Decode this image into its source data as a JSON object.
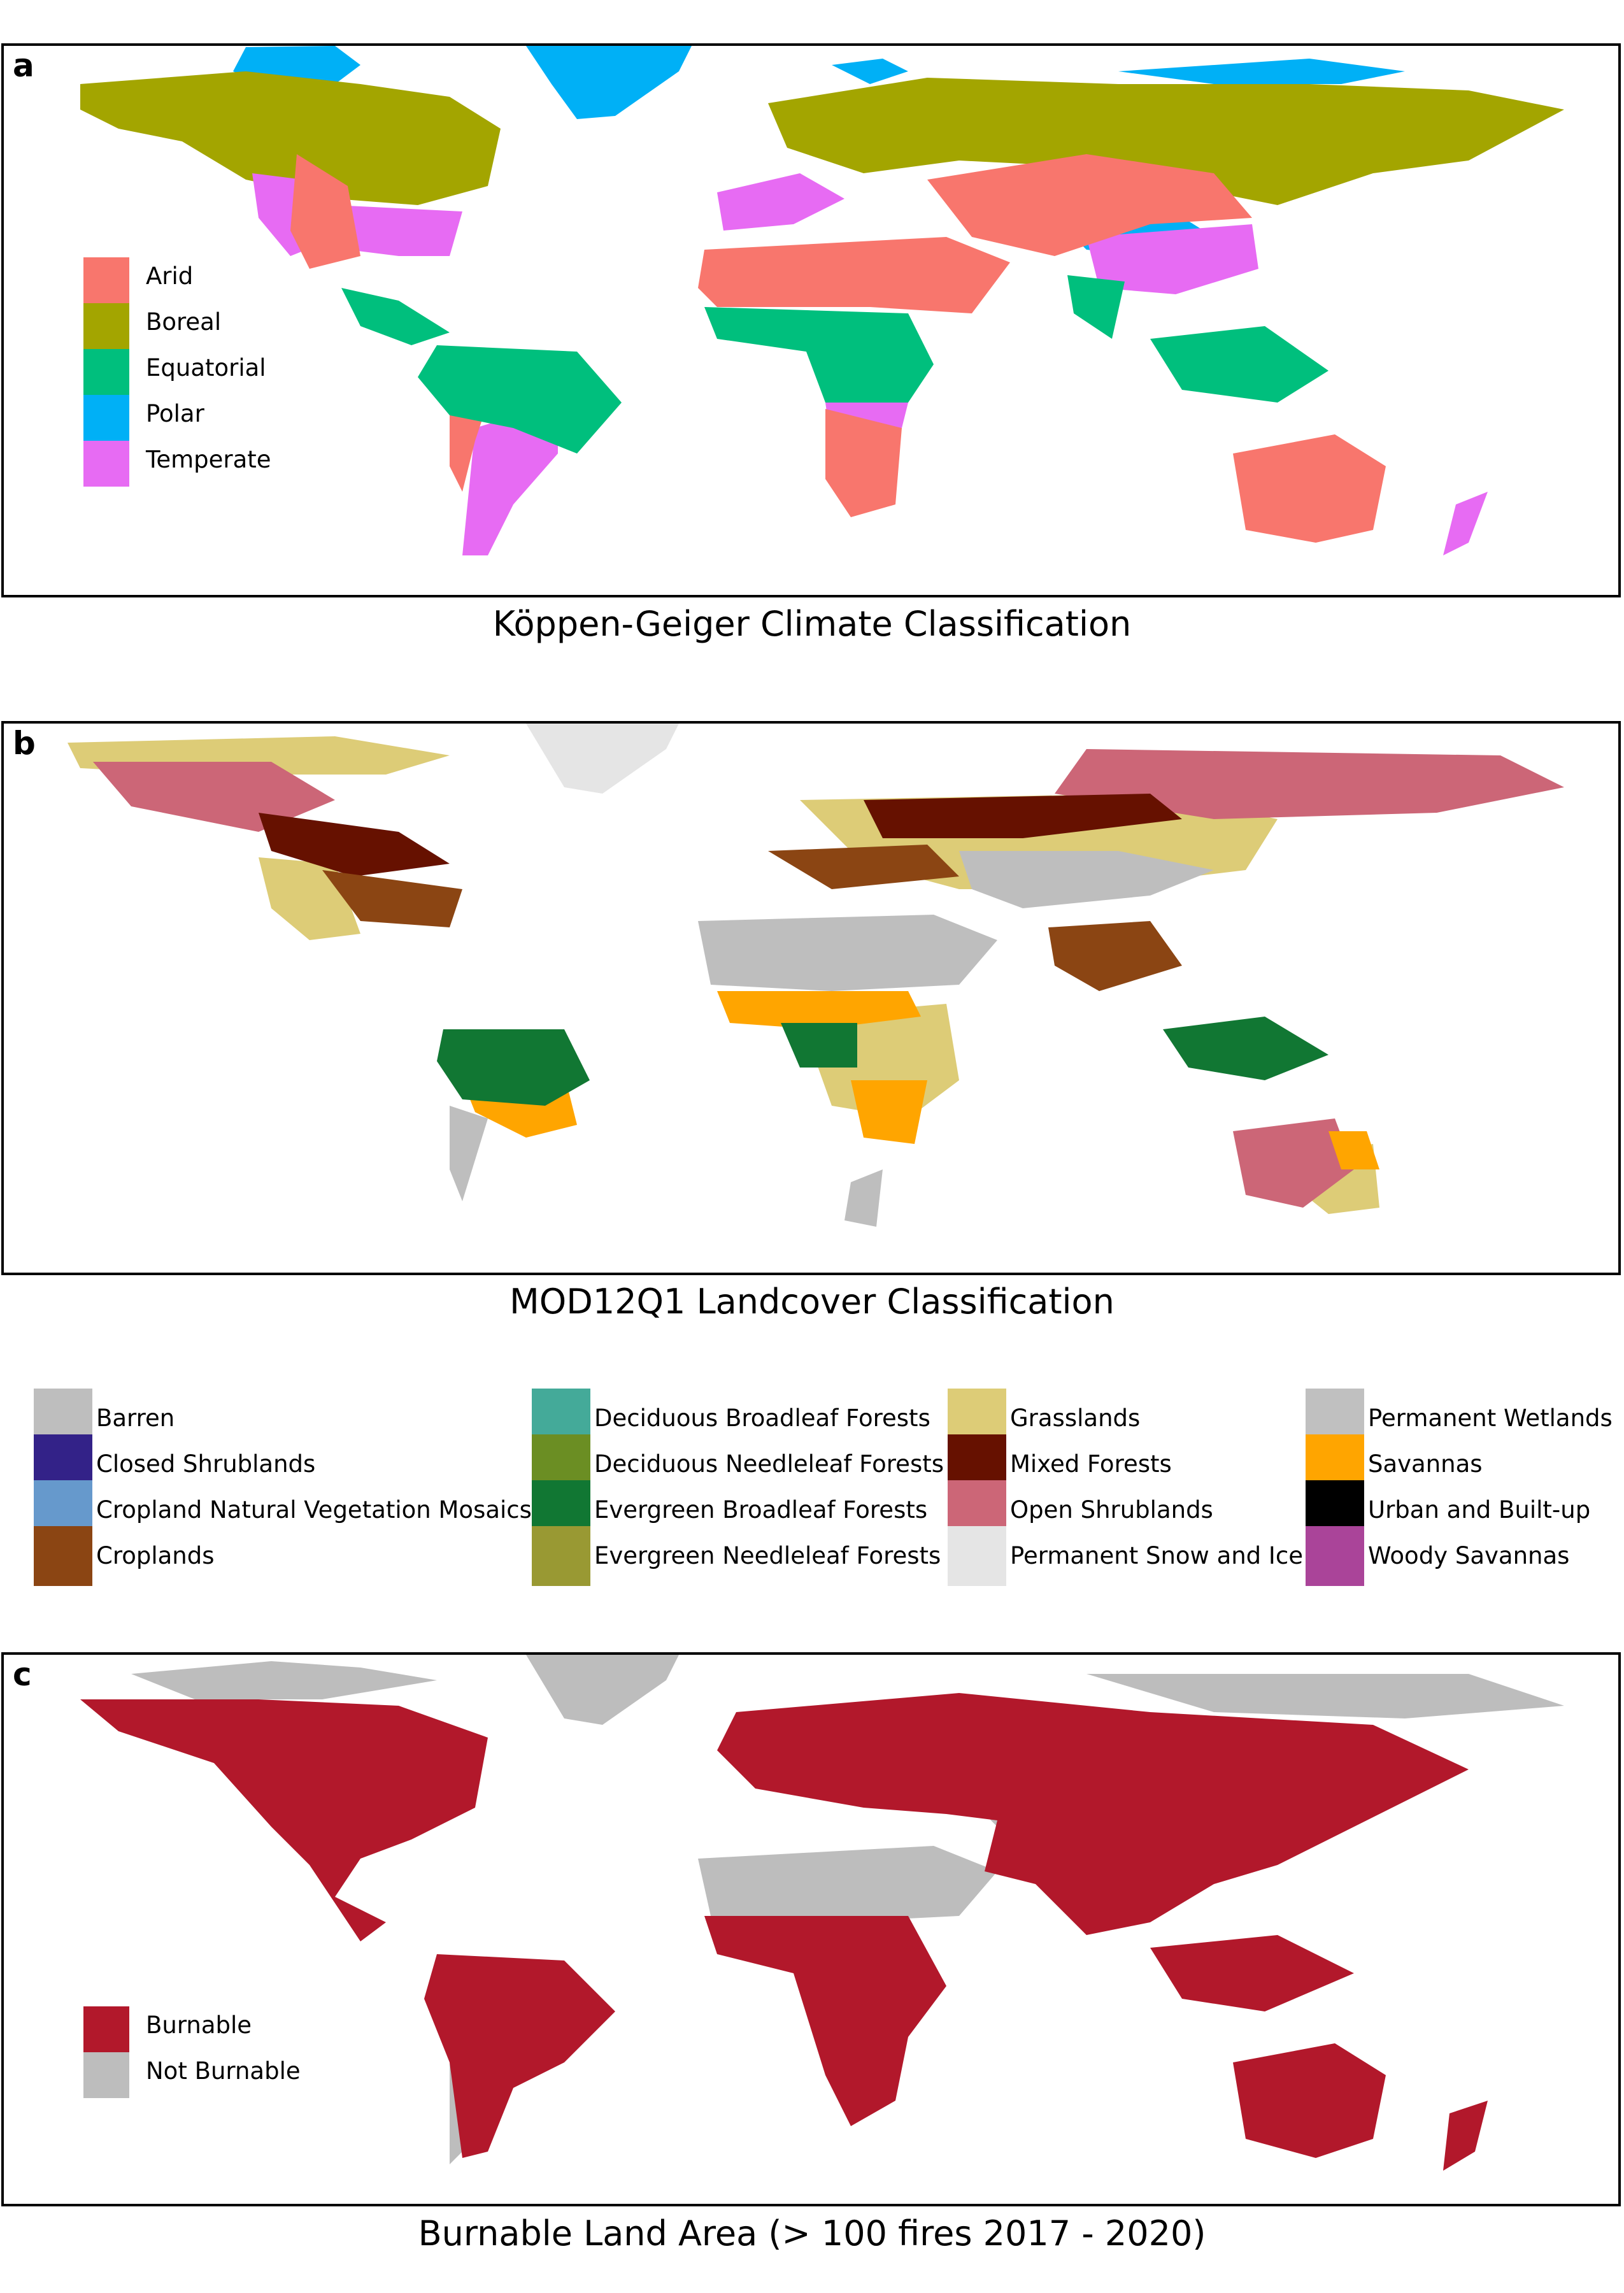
{
  "panels": [
    {
      "letter": "a",
      "caption": "Köppen-Geiger Climate Classification",
      "legend": [
        {
          "label": "Arid",
          "color": "#f8766d"
        },
        {
          "label": "Boreal",
          "color": "#a3a500"
        },
        {
          "label": "Equatorial",
          "color": "#00bf7d"
        },
        {
          "label": "Polar",
          "color": "#00b0f6"
        },
        {
          "label": "Temperate",
          "color": "#e76bf3"
        }
      ]
    },
    {
      "letter": "b",
      "caption": "MOD12Q1 Landcover Classification"
    },
    {
      "letter": "c",
      "caption": "Burnable Land Area (> 100 fires 2017 - 2020)",
      "legend": [
        {
          "label": "Burnable",
          "color": "#b2182b"
        },
        {
          "label": "Not Burnable",
          "color": "#bdbdbd"
        }
      ]
    }
  ],
  "landcover_legend": [
    {
      "label": "Barren",
      "color": "#bebebe"
    },
    {
      "label": "Closed Shrublands",
      "color": "#332288"
    },
    {
      "label": "Cropland Natural Vegetation Mosaics",
      "color": "#6699cc"
    },
    {
      "label": "Croplands",
      "color": "#8b4513"
    },
    {
      "label": "Deciduous Broadleaf Forests",
      "color": "#44aa99"
    },
    {
      "label": "Deciduous Needleleaf Forests",
      "color": "#6b8e23"
    },
    {
      "label": "Evergreen Broadleaf Forests",
      "color": "#117733"
    },
    {
      "label": "Evergreen Needleleaf Forests",
      "color": "#999933"
    },
    {
      "label": "Grasslands",
      "color": "#ddcc77"
    },
    {
      "label": "Mixed Forests",
      "color": "#661100"
    },
    {
      "label": "Open Shrublands",
      "color": "#cc6677"
    },
    {
      "label": "Permanent Snow and Ice",
      "color": "#e5e5e5"
    },
    {
      "label": "Permanent Wetlands",
      "color": "#c0c0c0"
    },
    {
      "label": "Savannas",
      "color": "#ffa500"
    },
    {
      "label": "Urban and Built-up",
      "color": "#000000"
    },
    {
      "label": "Woody Savannas",
      "color": "#aa4499"
    }
  ]
}
